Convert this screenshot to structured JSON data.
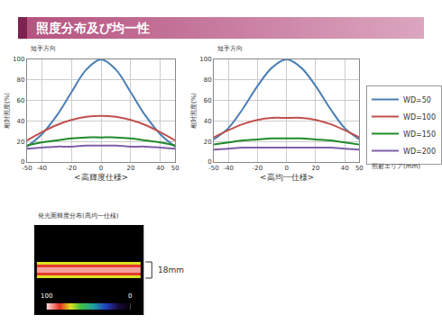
{
  "header": {
    "title": "照度分布及び均一性"
  },
  "chart_data": [
    {
      "type": "line",
      "title": "<高輝度仕様>",
      "annotations": [
        "短手方向"
      ],
      "y_label": "相対照度(%)",
      "x": [
        -50,
        -40,
        -30,
        -20,
        -10,
        0,
        10,
        20,
        30,
        40,
        50
      ],
      "series": [
        {
          "name": "WD=50",
          "color": "#4a7fb5",
          "values": [
            15,
            27,
            45,
            68,
            90,
            100,
            90,
            68,
            45,
            27,
            15
          ]
        },
        {
          "name": "WD=100",
          "color": "#c0504d",
          "values": [
            21,
            29,
            36,
            41,
            44,
            45,
            44,
            41,
            36,
            29,
            21
          ]
        },
        {
          "name": "WD=150",
          "color": "#1f8a2a",
          "values": [
            16,
            19,
            21,
            23,
            24,
            24,
            24,
            23,
            21,
            19,
            16
          ]
        },
        {
          "name": "WD=200",
          "color": "#7f60a8",
          "values": [
            13,
            14,
            15,
            15,
            16,
            16,
            16,
            15,
            15,
            14,
            13
          ]
        }
      ],
      "xlim": [
        -50,
        50
      ],
      "xticks": [
        -50,
        -40,
        -20,
        0,
        20,
        40,
        50
      ],
      "ylim": [
        0,
        100
      ],
      "yticks": [
        0,
        20,
        40,
        60,
        80,
        100
      ],
      "grid": true
    },
    {
      "type": "line",
      "title": "<高均一仕様>",
      "annotations": [
        "短手方向"
      ],
      "y_label": "相対照度(%)",
      "x_label": "照射エリア(mm)",
      "x": [
        -50,
        -40,
        -30,
        -20,
        -10,
        0,
        10,
        20,
        30,
        40,
        50
      ],
      "series": [
        {
          "name": "WD=50",
          "color": "#4a7fb5",
          "values": [
            22,
            33,
            52,
            74,
            92,
            100,
            92,
            74,
            52,
            33,
            22
          ]
        },
        {
          "name": "WD=100",
          "color": "#c0504d",
          "values": [
            24,
            31,
            37,
            41,
            43,
            43,
            43,
            41,
            37,
            31,
            24
          ]
        },
        {
          "name": "WD=150",
          "color": "#1f8a2a",
          "values": [
            17,
            19,
            21,
            22,
            23,
            23,
            23,
            22,
            21,
            19,
            17
          ]
        },
        {
          "name": "WD=200",
          "color": "#7f60a8",
          "values": [
            12,
            13,
            14,
            14,
            14,
            14,
            14,
            14,
            14,
            13,
            12
          ]
        }
      ],
      "xlim": [
        -50,
        50
      ],
      "xticks": [
        -50,
        -40,
        -20,
        0,
        20,
        40,
        50
      ],
      "ylim": [
        0,
        100
      ],
      "yticks": [
        0,
        20,
        40,
        60,
        80,
        100
      ],
      "grid": true,
      "legend": "right"
    },
    {
      "type": "heatmap",
      "title": "発光面輝度分布(高均一仕様)",
      "x": [
        -60,
        -57,
        57,
        60
      ],
      "y": [
        -50,
        -9,
        -6,
        -3,
        3,
        6,
        9,
        50
      ],
      "z": [
        [
          0,
          0,
          0
        ],
        [
          0,
          72,
          0
        ],
        [
          0,
          86,
          0
        ],
        [
          0,
          95,
          0
        ],
        [
          0,
          86,
          0
        ],
        [
          0,
          72,
          0
        ],
        [
          0,
          0,
          0
        ]
      ],
      "xlim": [
        -60,
        60
      ],
      "ylim": [
        -50,
        50
      ],
      "tick_labels": false,
      "colorbar": {
        "range": [
          0,
          100
        ],
        "ticks": [
          100,
          0
        ]
      },
      "annotations": [
        {
          "text": "18mm",
          "y": [
            -9,
            9
          ]
        }
      ]
    }
  ]
}
